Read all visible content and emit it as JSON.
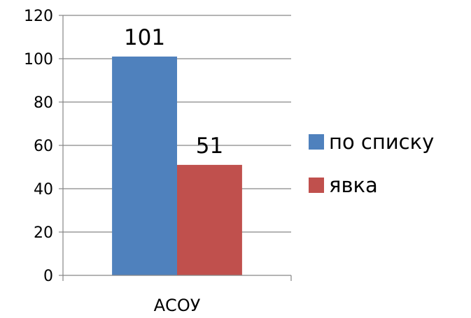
{
  "chart_data": {
    "type": "bar",
    "categories": [
      "АСОУ"
    ],
    "series": [
      {
        "name": "по списку",
        "values": [
          101
        ],
        "color": "#4F81BD"
      },
      {
        "name": "явка",
        "values": [
          51
        ],
        "color": "#C0504D"
      }
    ],
    "ylim": [
      0,
      120
    ],
    "yticks": [
      0,
      20,
      40,
      60,
      80,
      100,
      120
    ],
    "grid": true,
    "legend": "right",
    "data_labels": true
  }
}
